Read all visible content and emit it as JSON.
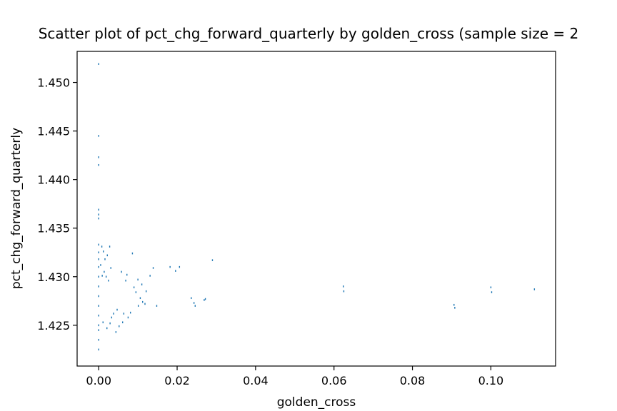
{
  "chart_data": {
    "type": "scatter",
    "title": "Scatter plot of pct_chg_forward_quarterly by golden_cross (sample size = 2",
    "xlabel": "golden_cross",
    "ylabel": "pct_chg_forward_quarterly",
    "xlim": [
      -0.0055,
      0.1165
    ],
    "ylim": [
      1.4208,
      1.4532
    ],
    "x_ticks": [
      0.0,
      0.02,
      0.04,
      0.06,
      0.08,
      0.1
    ],
    "x_tick_labels": [
      "0.00",
      "0.02",
      "0.04",
      "0.06",
      "0.08",
      "0.10"
    ],
    "y_ticks": [
      1.425,
      1.43,
      1.435,
      1.44,
      1.445,
      1.45
    ],
    "y_tick_labels": [
      "1.425",
      "1.430",
      "1.435",
      "1.440",
      "1.445",
      "1.450"
    ],
    "grid": false,
    "marker_color": "#1f77b4",
    "series": [
      {
        "points": [
          [
            0.0,
            1.4519
          ],
          [
            0.0,
            1.4445
          ],
          [
            0.0,
            1.4423
          ],
          [
            0.0,
            1.4415
          ],
          [
            0.0,
            1.4369
          ],
          [
            0.0,
            1.4364
          ],
          [
            0.0,
            1.436
          ],
          [
            0.0,
            1.4333
          ],
          [
            0.0,
            1.4325
          ],
          [
            0.0,
            1.4318
          ],
          [
            0.0,
            1.431
          ],
          [
            0.0,
            1.43
          ],
          [
            0.0,
            1.429
          ],
          [
            0.0,
            1.428
          ],
          [
            0.0,
            1.427
          ],
          [
            0.0,
            1.426
          ],
          [
            0.0,
            1.425
          ],
          [
            0.0,
            1.4245
          ],
          [
            0.0,
            1.4235
          ],
          [
            0.0,
            1.4225
          ],
          [
            0.0008,
            1.4331
          ],
          [
            0.0012,
            1.4326
          ],
          [
            0.0016,
            1.4318
          ],
          [
            0.0022,
            1.4322
          ],
          [
            0.0028,
            1.4331
          ],
          [
            0.0005,
            1.4312
          ],
          [
            0.0014,
            1.4305
          ],
          [
            0.0019,
            1.43
          ],
          [
            0.0025,
            1.4296
          ],
          [
            0.0031,
            1.4309
          ],
          [
            0.0009,
            1.4301
          ],
          [
            0.0021,
            1.4247
          ],
          [
            0.0029,
            1.4252
          ],
          [
            0.0033,
            1.4258
          ],
          [
            0.0011,
            1.4253
          ],
          [
            0.0044,
            1.4243
          ],
          [
            0.0052,
            1.4249
          ],
          [
            0.0061,
            1.4253
          ],
          [
            0.0038,
            1.4262
          ],
          [
            0.0047,
            1.4266
          ],
          [
            0.0064,
            1.4262
          ],
          [
            0.0075,
            1.4258
          ],
          [
            0.0081,
            1.4263
          ],
          [
            0.0058,
            1.4305
          ],
          [
            0.0069,
            1.4296
          ],
          [
            0.0072,
            1.4302
          ],
          [
            0.0086,
            1.4324
          ],
          [
            0.009,
            1.4289
          ],
          [
            0.0095,
            1.4284
          ],
          [
            0.0101,
            1.427
          ],
          [
            0.0106,
            1.4278
          ],
          [
            0.0112,
            1.4274
          ],
          [
            0.0118,
            1.4272
          ],
          [
            0.01,
            1.4297
          ],
          [
            0.011,
            1.4292
          ],
          [
            0.0121,
            1.4285
          ],
          [
            0.0131,
            1.4301
          ],
          [
            0.0139,
            1.4309
          ],
          [
            0.0148,
            1.427
          ],
          [
            0.0182,
            1.431
          ],
          [
            0.0196,
            1.4306
          ],
          [
            0.0206,
            1.431
          ],
          [
            0.0236,
            1.4278
          ],
          [
            0.0243,
            1.4273
          ],
          [
            0.0246,
            1.427
          ],
          [
            0.0269,
            1.4276
          ],
          [
            0.0272,
            1.4277
          ],
          [
            0.029,
            1.4317
          ],
          [
            0.0624,
            1.429
          ],
          [
            0.0625,
            1.4285
          ],
          [
            0.0906,
            1.4271
          ],
          [
            0.0908,
            1.4268
          ],
          [
            0.1,
            1.4289
          ],
          [
            0.1002,
            1.4284
          ],
          [
            0.1111,
            1.4287
          ]
        ]
      }
    ]
  }
}
